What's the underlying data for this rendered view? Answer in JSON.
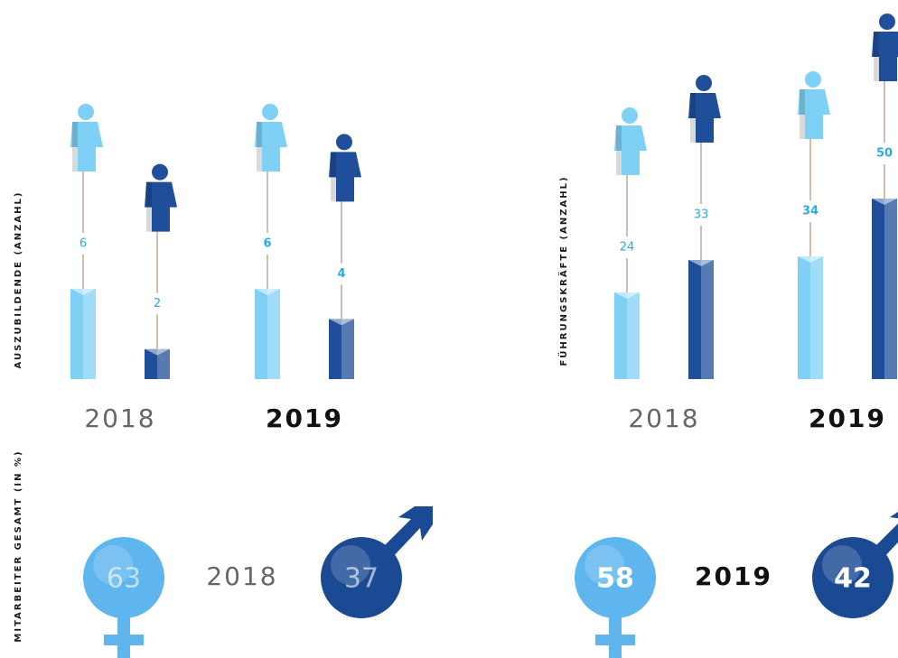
{
  "chart_data": [
    {
      "type": "bar",
      "y_label": "AUSZUBILDENDE (ANZAHL)",
      "categories": [
        "2018",
        "2019"
      ],
      "series": [
        {
          "color": "#7fd0f5",
          "values": [
            6,
            6
          ]
        },
        {
          "color": "#1f4e9a",
          "values": [
            2,
            4
          ]
        }
      ]
    },
    {
      "type": "bar",
      "y_label": "FÜHRUNGSKRÄFTE (ANZAHL)",
      "categories": [
        "2018",
        "2019"
      ],
      "series": [
        {
          "color": "#7fd0f5",
          "values": [
            24,
            34
          ]
        },
        {
          "color": "#1f4e9a",
          "values": [
            33,
            50
          ]
        }
      ]
    },
    {
      "type": "symbol",
      "y_label": "MITARBEITER GESAMT (IN %)",
      "categories": [
        "2018",
        "2019"
      ],
      "series": [
        {
          "color": "#5fb5ee",
          "values": [
            63,
            58
          ]
        },
        {
          "color": "#1a4a94",
          "values": [
            37,
            42
          ]
        }
      ]
    }
  ]
}
